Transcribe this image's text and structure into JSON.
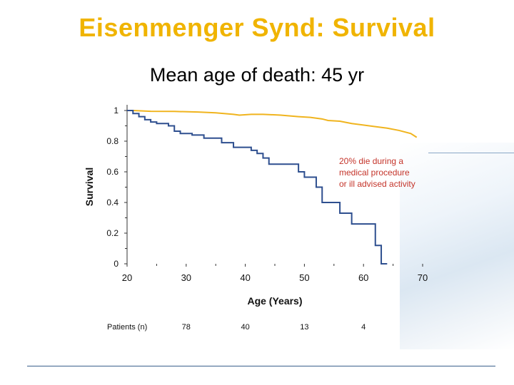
{
  "slide": {
    "title": "Eisenmenger Synd: Survival",
    "subtitle": "Mean age of death: 45 yr"
  },
  "chart_data": {
    "type": "line",
    "xlabel": "Age (Years)",
    "ylabel": "Survival",
    "xlim": [
      20,
      70
    ],
    "ylim": [
      0,
      1
    ],
    "xticks": [
      20,
      30,
      40,
      50,
      60,
      70
    ],
    "yticks": [
      0,
      0.2,
      0.4,
      0.6,
      0.8,
      1
    ],
    "ytick_labels": [
      "0",
      "0.2",
      "0.4",
      "0.6",
      "0.8",
      "1"
    ],
    "series": [
      {
        "name": "",
        "color": "#f0b41e",
        "step": false,
        "points": [
          [
            21,
            1
          ],
          [
            22,
            0.998
          ],
          [
            24,
            0.995
          ],
          [
            28,
            0.994
          ],
          [
            32,
            0.99
          ],
          [
            35,
            0.985
          ],
          [
            38,
            0.975
          ],
          [
            39,
            0.97
          ],
          [
            41,
            0.975
          ],
          [
            43,
            0.975
          ],
          [
            46,
            0.97
          ],
          [
            49,
            0.96
          ],
          [
            51,
            0.955
          ],
          [
            53,
            0.945
          ],
          [
            54,
            0.935
          ],
          [
            56,
            0.93
          ],
          [
            58,
            0.915
          ],
          [
            62,
            0.895
          ],
          [
            64,
            0.885
          ],
          [
            66,
            0.87
          ],
          [
            68,
            0.85
          ],
          [
            69,
            0.825
          ]
        ]
      },
      {
        "name": "",
        "color": "#2e4f8f",
        "step": true,
        "points": [
          [
            20,
            1
          ],
          [
            21,
            0.98
          ],
          [
            22,
            0.96
          ],
          [
            23,
            0.94
          ],
          [
            24,
            0.925
          ],
          [
            25,
            0.915
          ],
          [
            27,
            0.9
          ],
          [
            28,
            0.865
          ],
          [
            29,
            0.85
          ],
          [
            31,
            0.84
          ],
          [
            33,
            0.82
          ],
          [
            36,
            0.79
          ],
          [
            38,
            0.76
          ],
          [
            41,
            0.74
          ],
          [
            42,
            0.72
          ],
          [
            43,
            0.69
          ],
          [
            44,
            0.65
          ],
          [
            47,
            0.65
          ],
          [
            49,
            0.6
          ],
          [
            50,
            0.565
          ],
          [
            52,
            0.5
          ],
          [
            53,
            0.4
          ],
          [
            56,
            0.33
          ],
          [
            58,
            0.26
          ],
          [
            62,
            0.12
          ],
          [
            63,
            0
          ],
          [
            64,
            0
          ]
        ]
      }
    ],
    "annotation": "20% die during a\nmedical procedure\nor ill advised activity",
    "annotation_color": "#c4342a",
    "patients_label": "Patients (n)",
    "patients": [
      {
        "age": 30,
        "n": "78"
      },
      {
        "age": 40,
        "n": "40"
      },
      {
        "age": 50,
        "n": "13"
      },
      {
        "age": 60,
        "n": "4"
      }
    ]
  }
}
